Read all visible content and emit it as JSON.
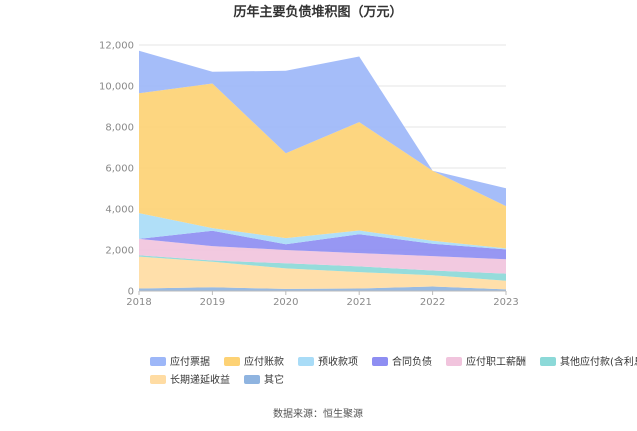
{
  "chart_data": {
    "type": "area",
    "stacked": true,
    "title": "历年主要负债堆积图（万元）",
    "xlabel": "",
    "ylabel": "",
    "categories": [
      "2018",
      "2019",
      "2020",
      "2021",
      "2022",
      "2023"
    ],
    "ylim": [
      0,
      12000
    ],
    "yticks": [
      "0",
      "2,000",
      "4,000",
      "6,000",
      "8,000",
      "10,000",
      "12,000"
    ],
    "grid": true,
    "legend_position": "bottom",
    "series": [
      {
        "name": "其它",
        "color": "#8fb4e0",
        "values": [
          120,
          180,
          100,
          120,
          220,
          80
        ]
      },
      {
        "name": "长期递延收益",
        "color": "#ffdca3",
        "values": [
          1560,
          1250,
          1000,
          800,
          550,
          420
        ]
      },
      {
        "name": "其他应付款(含利息和股利)",
        "color": "#8cd9d8",
        "values": [
          60,
          60,
          250,
          280,
          230,
          350
        ]
      },
      {
        "name": "应付职工薪酬",
        "color": "#f1c4dd",
        "values": [
          800,
          700,
          650,
          650,
          700,
          700
        ]
      },
      {
        "name": "合同负债",
        "color": "#8e8ef2",
        "values": [
          0,
          750,
          280,
          920,
          600,
          480
        ]
      },
      {
        "name": "预收款项",
        "color": "#a9dcf7",
        "values": [
          1260,
          130,
          300,
          180,
          150,
          50
        ]
      },
      {
        "name": "应付账款",
        "color": "#fdd275",
        "values": [
          5850,
          7050,
          4140,
          5290,
          3420,
          2060
        ]
      },
      {
        "name": "应付票据",
        "color": "#9db7f8",
        "values": [
          2070,
          580,
          4020,
          3200,
          0,
          870
        ]
      }
    ]
  },
  "legend_order": [
    "应付票据",
    "应付账款",
    "预收款项",
    "合同负债",
    "应付职工薪酬",
    "其他应付款(含利息和股利)",
    "长期递延收益",
    "其它"
  ],
  "source": "数据来源：恒生聚源"
}
